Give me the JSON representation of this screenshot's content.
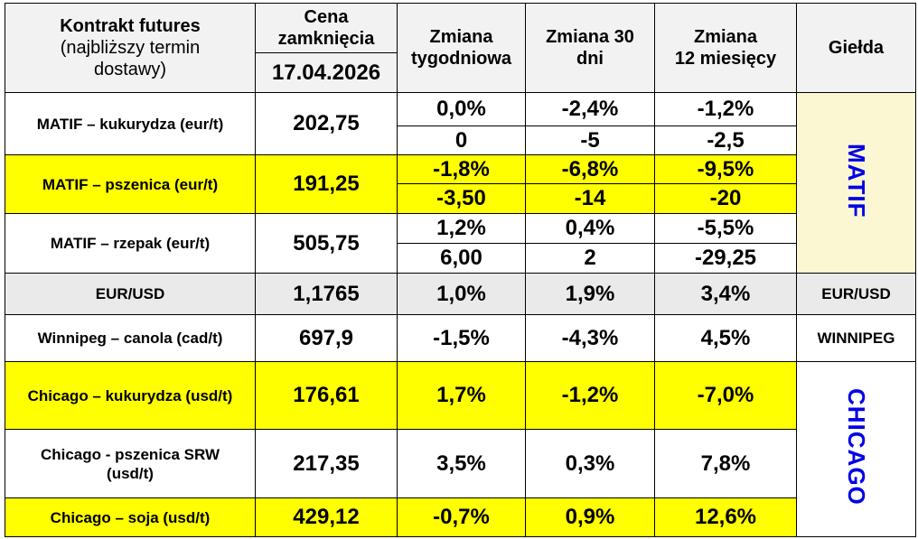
{
  "header": {
    "contract_line1": "Kontrakt futures",
    "contract_line2": "(najbliższy termin",
    "contract_line3": "dostawy)",
    "price_line1": "Cena",
    "price_line2": "zamknięcia",
    "date": "17.04.2026",
    "weekly_line1": "Zmiana",
    "weekly_line2": "tygodniowa",
    "d30_line1": "Zmiana 30",
    "d30_line2": "dni",
    "m12_line1": "Zmiana",
    "m12_line2": "12 miesięcy",
    "exchange": "Giełda"
  },
  "rows": [
    {
      "label": "MATIF – kukurydza  (eur/t)",
      "price": "202,75",
      "pct": [
        "0,0%",
        "-2,4%",
        "-1,2%"
      ],
      "abs": [
        "0",
        "-5",
        "-2,5"
      ]
    },
    {
      "label": "MATIF – pszenica (eur/t)",
      "price": "191,25",
      "pct": [
        "-1,8%",
        "-6,8%",
        "-9,5%"
      ],
      "abs": [
        "-3,50",
        "-14",
        "-20"
      ]
    },
    {
      "label": "MATIF – rzepak (eur/t)",
      "price": "505,75",
      "pct": [
        "1,2%",
        "0,4%",
        "-5,5%"
      ],
      "abs": [
        "6,00",
        "2",
        "-29,25"
      ]
    },
    {
      "label": "EUR/USD",
      "price": "1,1765",
      "pct": [
        "1,0%",
        "1,9%",
        "3,4%"
      ]
    },
    {
      "label": "Winnipeg – canola (cad/t)",
      "price": "697,9",
      "pct": [
        "-1,5%",
        "-4,3%",
        "4,5%"
      ]
    },
    {
      "label": "Chicago – kukurydza (usd/t)",
      "price": "176,61",
      "pct": [
        "1,7%",
        "-1,2%",
        "-7,0%"
      ]
    },
    {
      "label_line1": "Chicago - pszenica SRW",
      "label_line2": "(usd/t)",
      "price": "217,35",
      "pct": [
        "3,5%",
        "0,3%",
        "7,8%"
      ]
    },
    {
      "label": "Chicago – soja (usd/t)",
      "price": "429,12",
      "pct": [
        "-0,7%",
        "0,9%",
        "12,6%"
      ]
    }
  ],
  "exchanges": {
    "matif": "MATIF",
    "eurusd": "EUR/USD",
    "winnipeg": "WINNIPEG",
    "chicago": "CHICAGO"
  },
  "colors": {
    "positive": "#1aa23a",
    "negative": "#f0401f",
    "highlight": "#ffff00",
    "exchange_text": "#0000e6"
  }
}
